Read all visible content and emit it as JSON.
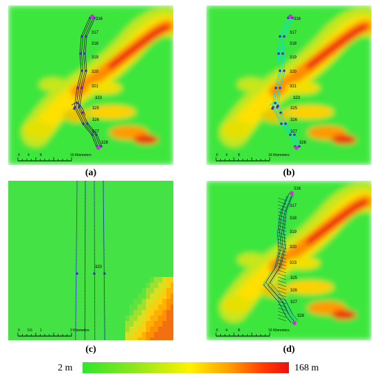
{
  "panels": [
    {
      "label": "(a)",
      "scale": {
        "ticks": [
          "0",
          "4",
          "8"
        ],
        "end": "16 Kilometers"
      },
      "stations": [
        "316",
        "317",
        "318",
        "319",
        "320",
        "321",
        "323",
        "325",
        "326",
        "327",
        "328"
      ]
    },
    {
      "label": "(b)",
      "scale": {
        "ticks": [
          "0",
          "4",
          "8"
        ],
        "end": "16 Kilometers"
      },
      "stations": [
        "316",
        "317",
        "318",
        "319",
        "320",
        "321",
        "323",
        "325",
        "326",
        "327",
        "328"
      ]
    },
    {
      "label": "(c)",
      "scale": {
        "ticks": [
          "0",
          "0.5",
          "1"
        ],
        "end": "2 Kilometers"
      },
      "stations": [
        "320"
      ]
    },
    {
      "label": "(d)",
      "scale": {
        "ticks": [
          "0",
          "4",
          "8"
        ],
        "end": "16 Kilometers"
      },
      "stations": [
        "316",
        "317",
        "318",
        "319",
        "320",
        "323",
        "325",
        "326",
        "327",
        "328"
      ]
    }
  ],
  "legend": {
    "min_label": "2 m",
    "max_label": "168 m",
    "colors": [
      "#2ee62e",
      "#fff200",
      "#ff9a00",
      "#ee1010"
    ]
  },
  "colors": {
    "background_green": "#3ee63e",
    "route_a": "#222222",
    "route_b": "#00e0e0",
    "marker": "#4030c0",
    "endpoint": "#d030d0"
  }
}
